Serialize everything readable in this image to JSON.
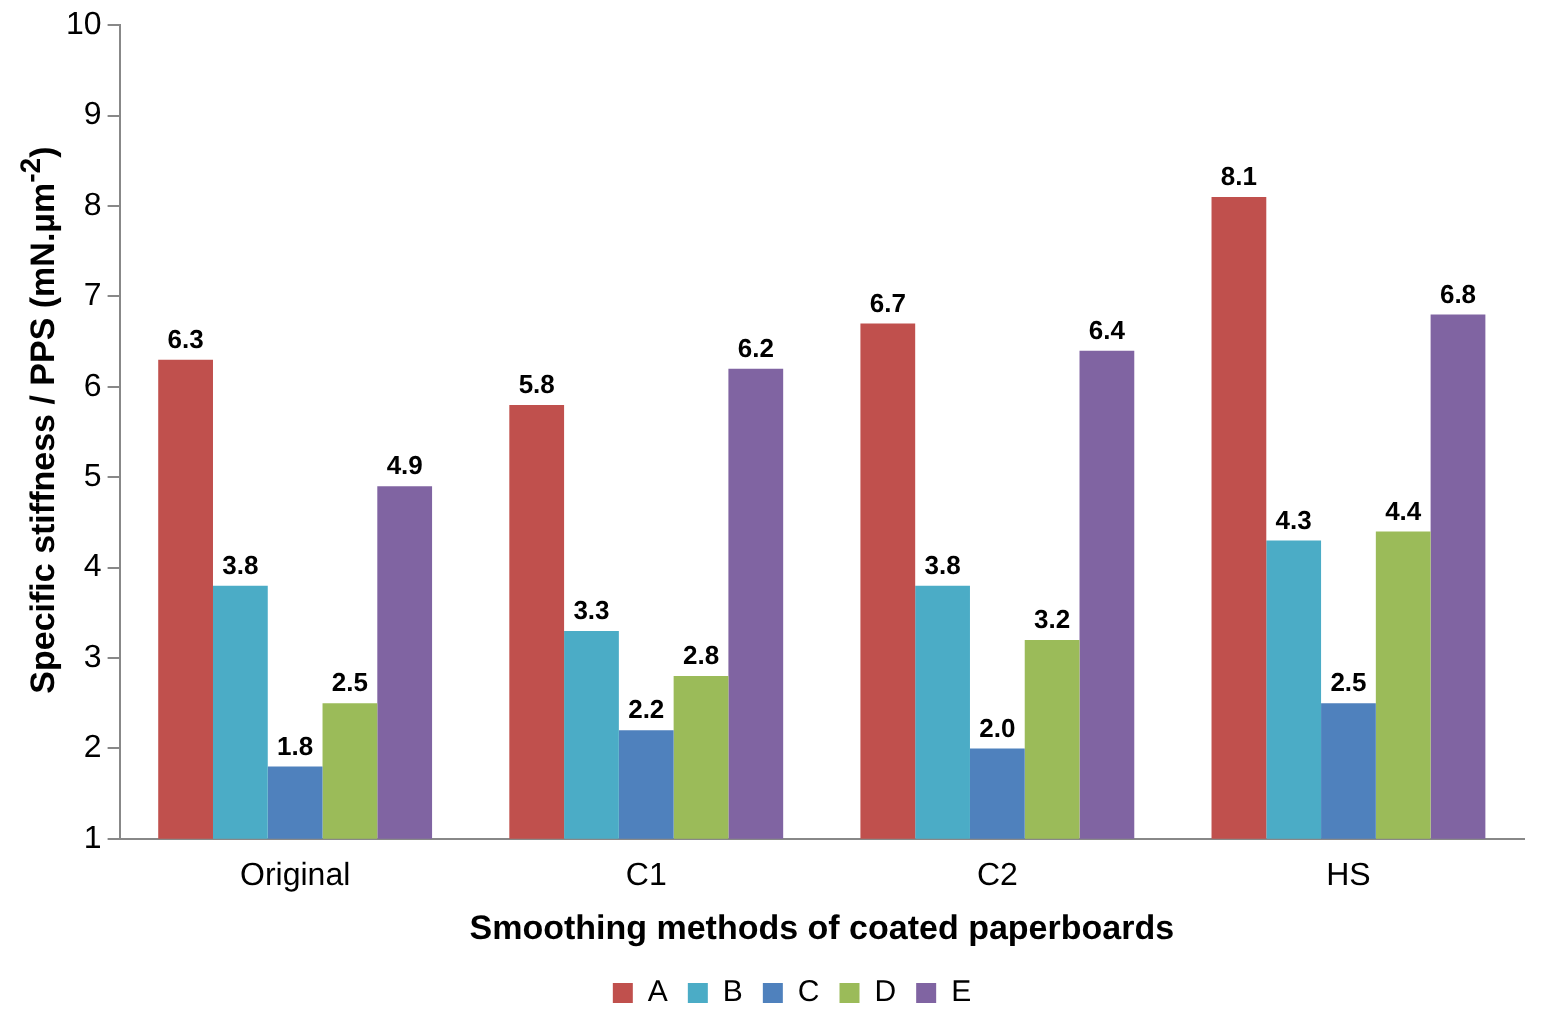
{
  "chart_data": {
    "type": "bar",
    "xlabel": "Smoothing methods of coated paperboards",
    "ylabel": "Specific stiffness / PPS (mN.µm$^{-2}$)",
    "categories": [
      "Original",
      "C1",
      "C2",
      "HS"
    ],
    "series": [
      {
        "name": "A",
        "color": "#c0504d",
        "values": [
          6.3,
          5.8,
          6.7,
          8.1
        ],
        "value_labels": [
          "6.3",
          "5.8",
          "6.7",
          "8.1"
        ]
      },
      {
        "name": "B",
        "color": "#4bacc6",
        "values": [
          3.8,
          3.3,
          3.8,
          4.3
        ],
        "value_labels": [
          "3.8",
          "3.3",
          "3.8",
          "4.3"
        ]
      },
      {
        "name": "C",
        "color": "#4f81bd",
        "values": [
          1.8,
          2.2,
          2.0,
          2.5
        ],
        "value_labels": [
          "1.8",
          "2.2",
          "2.0",
          "2.5"
        ]
      },
      {
        "name": "D",
        "color": "#9bbb59",
        "values": [
          2.5,
          2.8,
          3.2,
          4.4
        ],
        "value_labels": [
          "2.5",
          "2.8",
          "3.2",
          "4.4"
        ]
      },
      {
        "name": "E",
        "color": "#8064a2",
        "values": [
          4.9,
          6.2,
          6.4,
          6.8
        ],
        "value_labels": [
          "4.9",
          "6.2",
          "6.4",
          "6.8"
        ]
      }
    ],
    "ylim": [
      1,
      10
    ],
    "yticks": [
      1,
      2,
      3,
      4,
      5,
      6,
      7,
      8,
      9,
      10
    ],
    "grid": false,
    "legend": "bottom"
  }
}
